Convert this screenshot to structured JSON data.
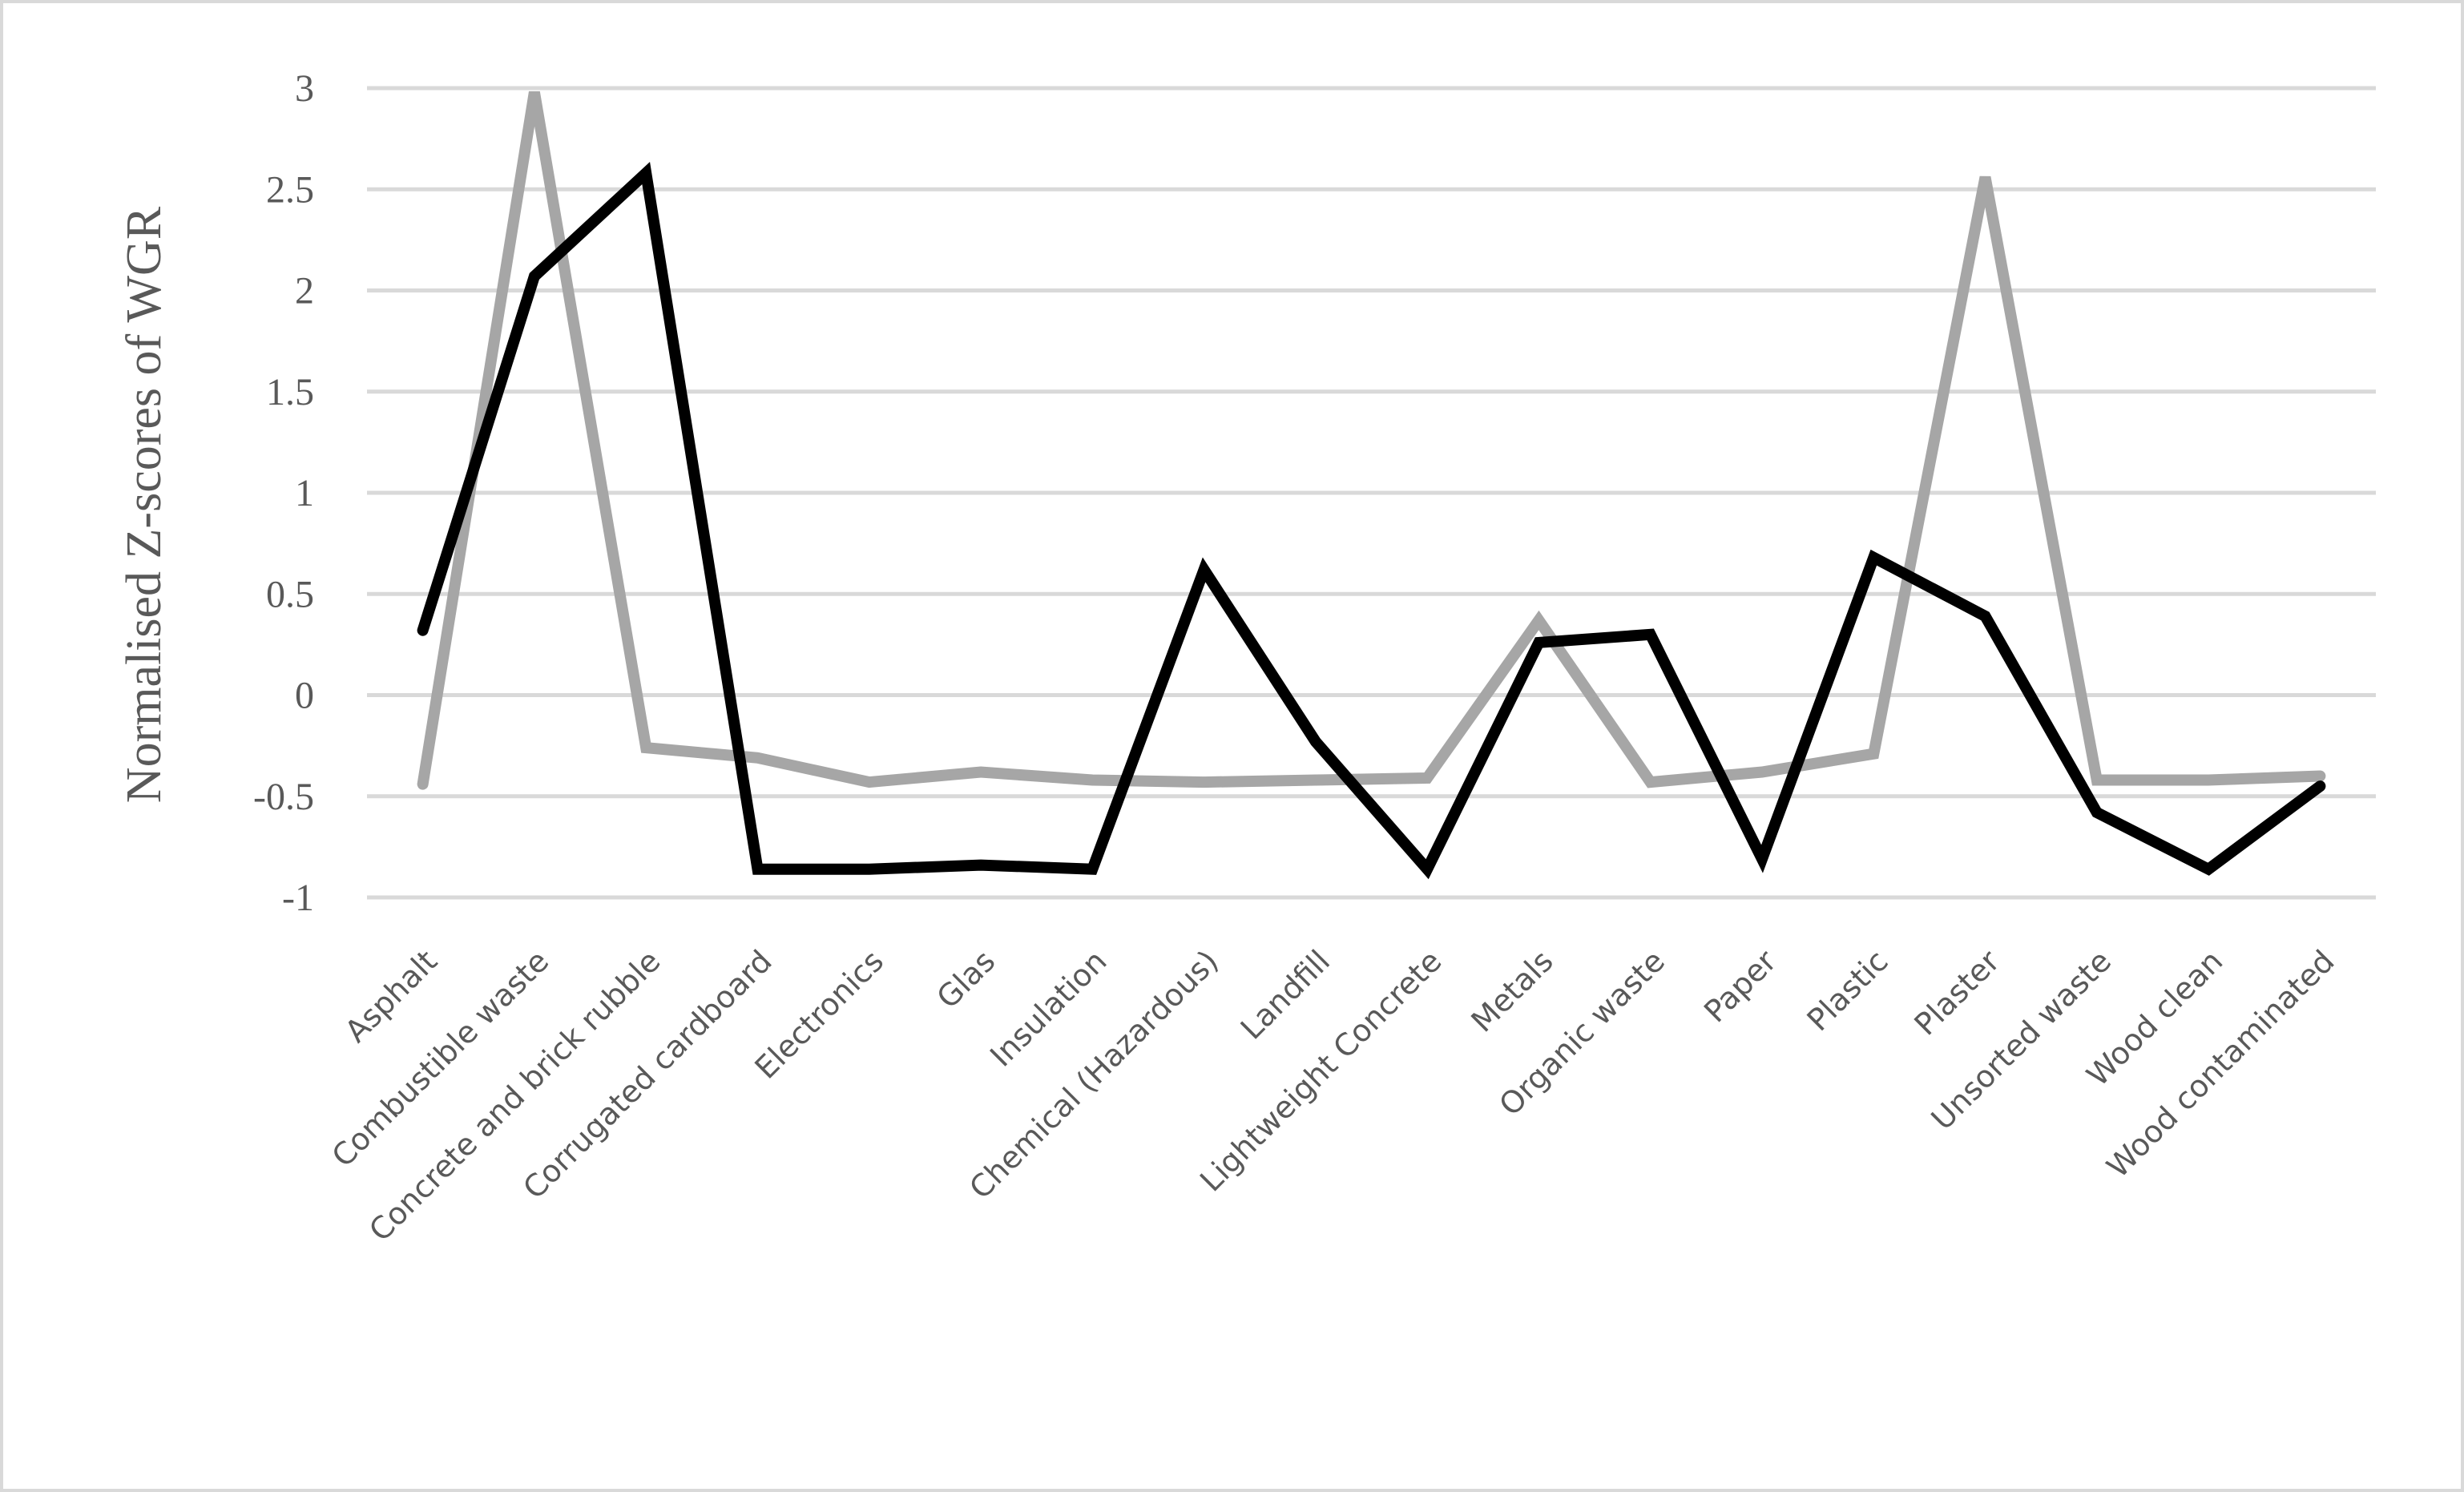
{
  "chart_data": {
    "type": "line",
    "title": "",
    "xlabel": "",
    "ylabel": "Normalised Z-scores of WGR",
    "ylim": [
      -1,
      3
    ],
    "yticks": [
      3,
      2.5,
      2,
      1.5,
      1,
      0.5,
      0,
      -0.5,
      -1
    ],
    "ytick_labels": [
      "3",
      "2.5",
      "2",
      "1.5",
      "1",
      "0.5",
      "0",
      "-0.5",
      "-1"
    ],
    "grid": "horizontal",
    "legend": "none",
    "categories": [
      "Asphalt",
      "Combustible waste",
      "Concrete and brick rubble",
      "Corrugated cardboard",
      "Electronics",
      "Glas",
      "Insulation",
      "Chemical (Hazardous)",
      "Landfill",
      "Lightweight Concrete",
      "Metals",
      "Organic waste",
      "Paper",
      "Plastic",
      "Plaster",
      "Unsorted waste",
      "Wood clean",
      "Wood contaminated"
    ],
    "series": [
      {
        "color": "#a6a6a6",
        "values": [
          -0.44,
          2.98,
          -0.26,
          -0.31,
          -0.43,
          -0.38,
          -0.42,
          -0.43,
          -0.42,
          -0.41,
          0.37,
          -0.43,
          -0.38,
          -0.29,
          2.56,
          -0.42,
          -0.42,
          -0.4
        ]
      },
      {
        "color": "#000000",
        "values": [
          0.32,
          2.07,
          2.58,
          -0.86,
          -0.86,
          -0.84,
          -0.86,
          0.62,
          -0.23,
          -0.86,
          0.26,
          0.3,
          -0.81,
          0.68,
          0.39,
          -0.58,
          -0.86,
          -0.45
        ]
      }
    ]
  }
}
